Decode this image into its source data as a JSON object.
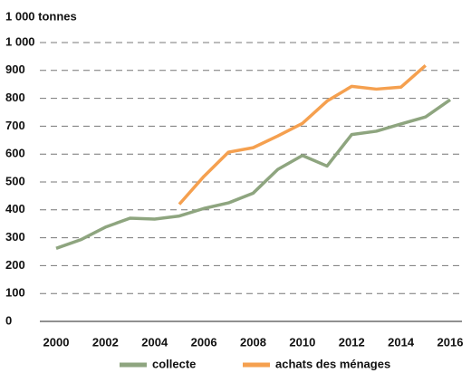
{
  "chart_data": {
    "type": "line",
    "y_label": "1 000 tonnes",
    "x": [
      2000,
      2001,
      2002,
      2003,
      2004,
      2005,
      2006,
      2007,
      2008,
      2009,
      2010,
      2011,
      2012,
      2013,
      2014,
      2015,
      2016
    ],
    "series": [
      {
        "name": "collecte",
        "color": "#8ea57f",
        "values": [
          262,
          293,
          338,
          370,
          367,
          378,
          405,
          425,
          460,
          545,
          595,
          557,
          670,
          682,
          708,
          733,
          795
        ]
      },
      {
        "name": "achats des ménages",
        "color": "#f5a04f",
        "values": [
          null,
          null,
          null,
          null,
          null,
          420,
          520,
          607,
          623,
          665,
          710,
          790,
          843,
          833,
          840,
          918,
          null
        ]
      }
    ],
    "xlim": [
      2000,
      2016
    ],
    "xticks": [
      2000,
      2002,
      2004,
      2006,
      2008,
      2010,
      2012,
      2014,
      2016
    ],
    "ylim": [
      0,
      1000
    ],
    "yticks": [
      0,
      100,
      200,
      300,
      400,
      500,
      600,
      700,
      800,
      900,
      {
        "value": 1000,
        "label": "1 000"
      }
    ],
    "grid": true,
    "legend": "bottom"
  }
}
